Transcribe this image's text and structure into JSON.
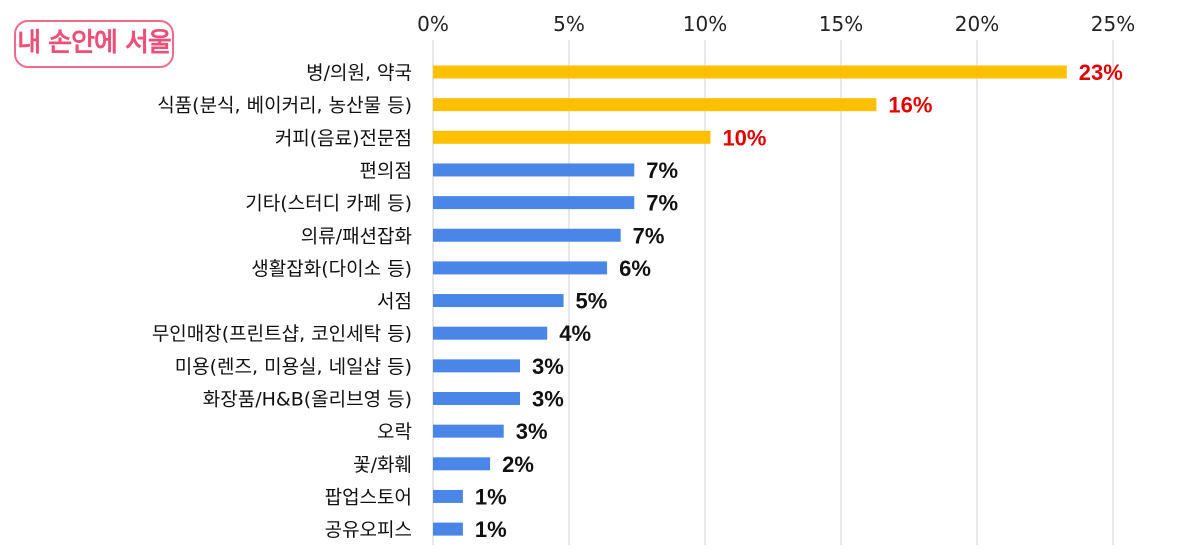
{
  "logo": {
    "text": "내 손안에 서울"
  },
  "colors": {
    "highlight": "#FFC000",
    "normal": "#4A86E8",
    "highlight_label": "#E00000",
    "normal_label": "#111111",
    "grid": "#D0D0D0"
  },
  "chart_data": {
    "type": "bar",
    "orientation": "horizontal",
    "categories": [
      "병/의원, 약국",
      "식품(분식, 베이커리, 농산물 등)",
      "커피(음료)전문점",
      "편의점",
      "기타(스터디 카페 등)",
      "의류/패션잡화",
      "생활잡화(다이소 등)",
      "서점",
      "무인매장(프린트샵, 코인세탁  등)",
      "미용(렌즈, 미용실, 네일샵 등)",
      "화장품/H&B(올리브영 등)",
      "오락",
      "꽃/화훼",
      "팝업스토어",
      "공유오피스"
    ],
    "values": [
      23.3,
      16.3,
      10.2,
      7.4,
      7.4,
      6.9,
      6.4,
      4.8,
      4.2,
      3.2,
      3.2,
      2.6,
      2.1,
      1.1,
      1.1
    ],
    "labels": [
      "23%",
      "16%",
      "10%",
      "7%",
      "7%",
      "7%",
      "6%",
      "5%",
      "4%",
      "3%",
      "3%",
      "3%",
      "2%",
      "1%",
      "1%"
    ],
    "highlight": [
      true,
      true,
      true,
      false,
      false,
      false,
      false,
      false,
      false,
      false,
      false,
      false,
      false,
      false,
      false
    ],
    "xticks": [
      "0%",
      "5%",
      "10%",
      "15%",
      "20%",
      "25%"
    ],
    "xlim": [
      0,
      25
    ],
    "xaxis_position": "top",
    "grid": true,
    "title": "",
    "xlabel": "",
    "ylabel": ""
  }
}
